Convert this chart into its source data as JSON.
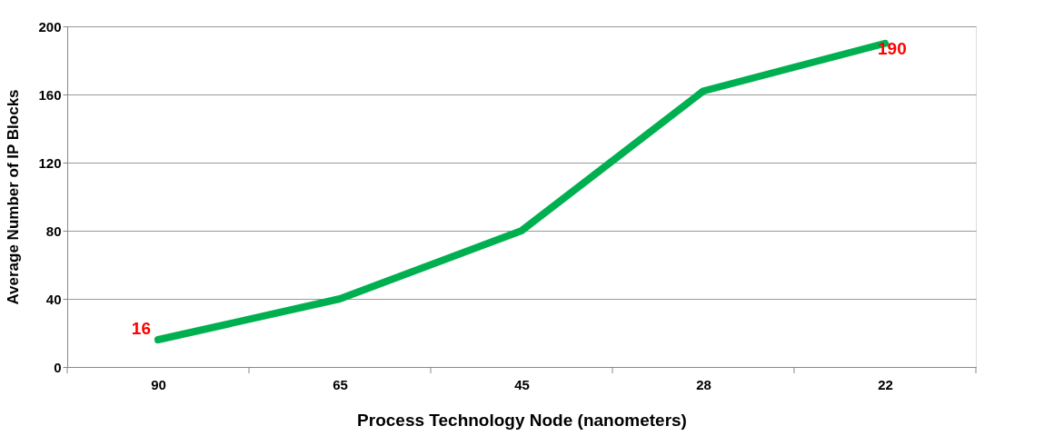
{
  "chart_data": {
    "type": "line",
    "xlabel": "Process Technology Node  (nanometers)",
    "ylabel": "Average Number of IP Blocks",
    "categories": [
      "90",
      "65",
      "45",
      "28",
      "22"
    ],
    "series": [
      {
        "color": "#00b050",
        "values": [
          16,
          40,
          80,
          162,
          190
        ],
        "value_labels": [
          "16",
          null,
          null,
          null,
          "190"
        ]
      }
    ],
    "ylim": [
      0,
      200
    ],
    "yticks": [
      0,
      40,
      80,
      120,
      160,
      200
    ],
    "grid": "y",
    "marker": "none",
    "line_style": "solid",
    "legend": false
  }
}
